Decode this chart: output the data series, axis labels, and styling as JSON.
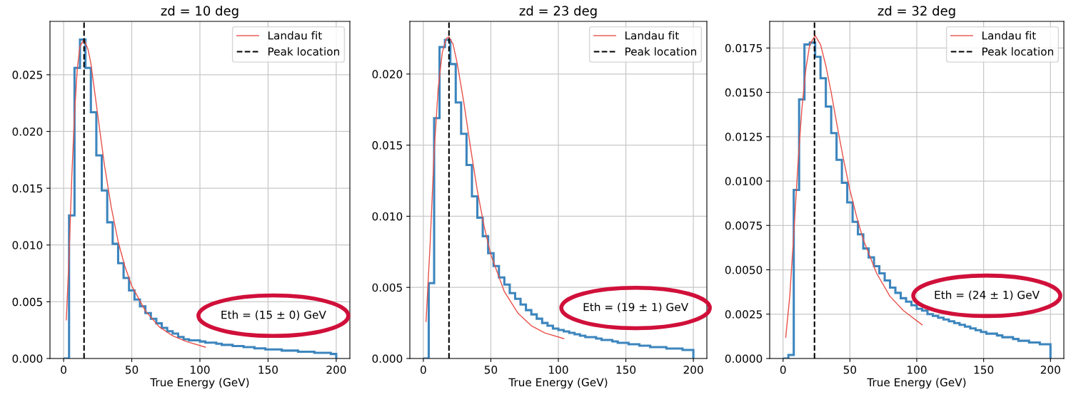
{
  "chart_data": [
    {
      "type": "histogram",
      "title": "zd = 10 deg",
      "xlabel": "True Energy (GeV)",
      "bins": [
        0,
        4,
        8,
        12,
        16,
        20,
        24,
        28,
        32,
        36,
        40,
        44,
        48,
        52,
        56,
        60,
        64,
        68,
        72,
        76,
        80,
        84,
        88,
        92,
        96,
        100,
        104,
        108,
        112,
        116,
        120,
        124,
        128,
        132,
        136,
        140,
        144,
        148,
        152,
        156,
        160,
        164,
        168,
        172,
        176,
        180,
        184,
        188,
        192,
        196,
        200
      ],
      "series": [
        {
          "color": "#3c85bd",
          "values": [
            0,
            0.0126,
            0.0256,
            0.0281,
            0.0256,
            0.0217,
            0.0179,
            0.0148,
            0.012,
            0.0101,
            0.0084,
            0.0071,
            0.006,
            0.0052,
            0.0046,
            0.004,
            0.0035,
            0.0031,
            0.0027,
            0.0024,
            0.0022,
            0.0019,
            0.0017,
            0.0016,
            0.0016,
            0.0015,
            0.0014,
            0.0014,
            0.0013,
            0.0012,
            0.0012,
            0.0011,
            0.0011,
            0.001,
            0.001,
            0.0009,
            0.0009,
            0.0008,
            0.0008,
            0.0008,
            0.0007,
            0.0007,
            0.0007,
            0.0006,
            0.0006,
            0.0006,
            0.0005,
            0.0005,
            0.0005,
            0.0004
          ]
        },
        {
          "type": "line",
          "name": "Landau fit",
          "color": "#e8514a",
          "x": [
            2,
            4,
            6,
            8,
            10,
            12,
            15,
            18,
            20,
            25,
            30,
            35,
            40,
            45,
            50,
            60,
            70,
            80,
            90,
            104
          ],
          "values": [
            0.0034,
            0.009,
            0.016,
            0.0215,
            0.0255,
            0.0275,
            0.0281,
            0.0272,
            0.026,
            0.0215,
            0.017,
            0.0133,
            0.0103,
            0.0081,
            0.0064,
            0.0042,
            0.0028,
            0.002,
            0.0015,
            0.001
          ]
        }
      ],
      "ref_lines": [
        {
          "axis": "x",
          "value": 15,
          "label": "Peak location",
          "color": "#000000",
          "line_style": "dashed"
        }
      ],
      "annotations": [
        "Eth = (15 ± 0) GeV"
      ],
      "xlim": [
        -10,
        210
      ],
      "xticks": [
        0,
        50,
        100,
        150,
        200
      ],
      "ylim": [
        0,
        0.0297
      ],
      "yticks": [
        {
          "value": 0,
          "label": "0.000"
        },
        {
          "value": 0.005,
          "label": "0.005"
        },
        {
          "value": 0.01,
          "label": "0.010"
        },
        {
          "value": 0.015,
          "label": "0.015"
        },
        {
          "value": 0.02,
          "label": "0.020"
        },
        {
          "value": 0.025,
          "label": "0.025"
        }
      ],
      "grid": true,
      "legend": "top right"
    },
    {
      "type": "histogram",
      "title": "zd = 23 deg",
      "xlabel": "True Energy (GeV)",
      "bins": [
        0,
        4,
        8,
        12,
        16,
        20,
        24,
        28,
        32,
        36,
        40,
        44,
        48,
        52,
        56,
        60,
        64,
        68,
        72,
        76,
        80,
        84,
        88,
        92,
        96,
        100,
        104,
        108,
        112,
        116,
        120,
        124,
        128,
        132,
        136,
        140,
        144,
        148,
        152,
        156,
        160,
        164,
        168,
        172,
        176,
        180,
        184,
        188,
        192,
        196,
        200
      ],
      "series": [
        {
          "color": "#3c85bd",
          "values": [
            0,
            0.0053,
            0.0169,
            0.0219,
            0.0224,
            0.0207,
            0.018,
            0.0158,
            0.0136,
            0.0114,
            0.0099,
            0.0086,
            0.0074,
            0.0065,
            0.0057,
            0.0052,
            0.0046,
            0.0042,
            0.0038,
            0.0034,
            0.0031,
            0.0028,
            0.0025,
            0.0023,
            0.0021,
            0.002,
            0.0019,
            0.0018,
            0.0017,
            0.0016,
            0.0015,
            0.0015,
            0.0014,
            0.0013,
            0.0013,
            0.0012,
            0.0011,
            0.0011,
            0.001,
            0.001,
            0.0009,
            0.0009,
            0.0008,
            0.0008,
            0.0008,
            0.0007,
            0.0007,
            0.0007,
            0.0006,
            0.0006
          ]
        },
        {
          "type": "line",
          "name": "Landau fit",
          "color": "#e8514a",
          "x": [
            2,
            5,
            8,
            11,
            14,
            17,
            19,
            22,
            25,
            30,
            35,
            40,
            45,
            50,
            60,
            70,
            80,
            90,
            104
          ],
          "values": [
            0.0026,
            0.008,
            0.0145,
            0.019,
            0.0215,
            0.0225,
            0.0226,
            0.0221,
            0.0208,
            0.018,
            0.0148,
            0.0118,
            0.0093,
            0.0073,
            0.0047,
            0.0032,
            0.0023,
            0.0018,
            0.0014
          ]
        }
      ],
      "ref_lines": [
        {
          "axis": "x",
          "value": 19,
          "label": "Peak location",
          "color": "#000000",
          "line_style": "dashed"
        }
      ],
      "annotations": [
        "Eth = (19 ± 1) GeV"
      ],
      "xlim": [
        -10,
        210
      ],
      "xticks": [
        0,
        50,
        100,
        150,
        200
      ],
      "ylim": [
        0,
        0.0237
      ],
      "yticks": [
        {
          "value": 0,
          "label": "0.000"
        },
        {
          "value": 0.005,
          "label": "0.005"
        },
        {
          "value": 0.01,
          "label": "0.010"
        },
        {
          "value": 0.015,
          "label": "0.015"
        },
        {
          "value": 0.02,
          "label": "0.020"
        }
      ],
      "grid": true,
      "legend": "top right"
    },
    {
      "type": "histogram",
      "title": "zd = 32 deg",
      "xlabel": "True Energy (GeV)",
      "bins": [
        0,
        4,
        8,
        12,
        16,
        20,
        24,
        28,
        32,
        36,
        40,
        44,
        48,
        52,
        56,
        60,
        64,
        68,
        72,
        76,
        80,
        84,
        88,
        92,
        96,
        100,
        104,
        108,
        112,
        116,
        120,
        124,
        128,
        132,
        136,
        140,
        144,
        148,
        152,
        156,
        160,
        164,
        168,
        172,
        176,
        180,
        184,
        188,
        192,
        196,
        200
      ],
      "series": [
        {
          "color": "#3c85bd",
          "values": [
            0,
            0.0002,
            0.0095,
            0.0146,
            0.0177,
            0.0178,
            0.017,
            0.0158,
            0.0142,
            0.0127,
            0.0112,
            0.0099,
            0.0088,
            0.0077,
            0.007,
            0.0062,
            0.0057,
            0.0052,
            0.0048,
            0.0044,
            0.004,
            0.0037,
            0.0034,
            0.0032,
            0.003,
            0.0028,
            0.0027,
            0.0025,
            0.0024,
            0.0023,
            0.0022,
            0.0021,
            0.002,
            0.0019,
            0.0018,
            0.0017,
            0.0016,
            0.0015,
            0.0014,
            0.0014,
            0.0013,
            0.0012,
            0.0012,
            0.0011,
            0.001,
            0.001,
            0.0009,
            0.0009,
            0.0008,
            0.0008
          ]
        },
        {
          "type": "line",
          "name": "Landau fit",
          "color": "#e8514a",
          "x": [
            2,
            5,
            8,
            11,
            14,
            17,
            20,
            24,
            28,
            32,
            36,
            40,
            45,
            50,
            55,
            60,
            70,
            80,
            90,
            104
          ],
          "values": [
            0.0012,
            0.0035,
            0.007,
            0.0108,
            0.014,
            0.0163,
            0.0177,
            0.0182,
            0.0177,
            0.0165,
            0.015,
            0.0133,
            0.0113,
            0.0095,
            0.008,
            0.0067,
            0.0048,
            0.0035,
            0.0027,
            0.0019
          ]
        }
      ],
      "ref_lines": [
        {
          "axis": "x",
          "value": 23.5,
          "label": "Peak location",
          "color": "#000000",
          "line_style": "dashed"
        }
      ],
      "annotations": [
        "Eth = (24 ± 1) GeV"
      ],
      "xlim": [
        -10,
        210
      ],
      "xticks": [
        0,
        50,
        100,
        150,
        200
      ],
      "ylim": [
        0,
        0.019
      ],
      "yticks": [
        {
          "value": 0,
          "label": "0.0000"
        },
        {
          "value": 0.0025,
          "label": "0.0025"
        },
        {
          "value": 0.005,
          "label": "0.0050"
        },
        {
          "value": 0.0075,
          "label": "0.0075"
        },
        {
          "value": 0.01,
          "label": "0.0100"
        },
        {
          "value": 0.0125,
          "label": "0.0125"
        },
        {
          "value": 0.015,
          "label": "0.0150"
        },
        {
          "value": 0.0175,
          "label": "0.0175"
        }
      ],
      "grid": true,
      "legend": "top right"
    }
  ]
}
